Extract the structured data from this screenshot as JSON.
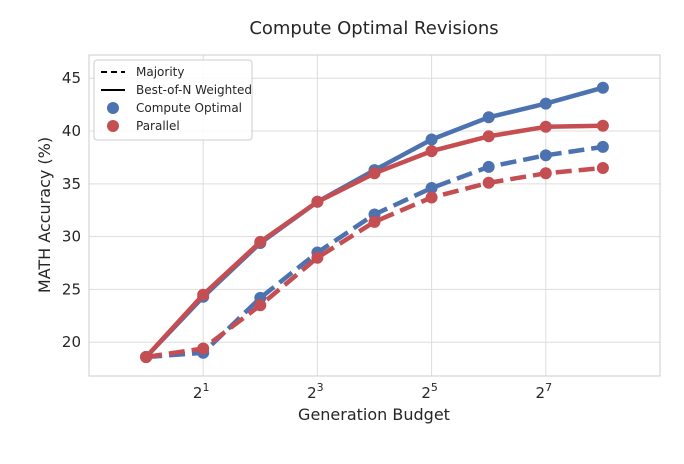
{
  "chart_data": {
    "type": "line",
    "title": "Compute Optimal Revisions",
    "xlabel": "Generation Budget",
    "ylabel": "MATH Accuracy (%)",
    "x_scale": "log2",
    "x": [
      1,
      2,
      4,
      8,
      16,
      32,
      64,
      128,
      256
    ],
    "xlim": [
      0.5,
      512
    ],
    "ylim": [
      16.8,
      47.2
    ],
    "x_ticks": [
      {
        "value": 2,
        "base": "2",
        "exp": "1"
      },
      {
        "value": 8,
        "base": "2",
        "exp": "3"
      },
      {
        "value": 32,
        "base": "2",
        "exp": "5"
      },
      {
        "value": 128,
        "base": "2",
        "exp": "7"
      }
    ],
    "y_ticks": [
      "20",
      "25",
      "30",
      "35",
      "40",
      "45"
    ],
    "grid": true,
    "legend_position": "top-left",
    "legend": {
      "style_entries": [
        {
          "label": "Majority",
          "style": "dashed"
        },
        {
          "label": "Best-of-N Weighted",
          "style": "solid"
        }
      ],
      "color_entries": [
        {
          "label": "Compute Optimal",
          "color": "#4C72B0"
        },
        {
          "label": "Parallel",
          "color": "#C44E52"
        }
      ]
    },
    "series": [
      {
        "method": "Compute Optimal",
        "aggregation": "Majority",
        "style": "dashed",
        "color": "#4C72B0",
        "values": [
          18.6,
          19.0,
          24.2,
          28.5,
          32.1,
          34.6,
          36.6,
          37.7,
          38.5
        ]
      },
      {
        "method": "Parallel",
        "aggregation": "Majority",
        "style": "dashed",
        "color": "#C44E52",
        "values": [
          18.6,
          19.4,
          23.5,
          28.0,
          31.4,
          33.7,
          35.1,
          36.0,
          36.5
        ]
      },
      {
        "method": "Compute Optimal",
        "aggregation": "Best-of-N Weighted",
        "style": "solid",
        "color": "#4C72B0",
        "values": [
          18.6,
          24.3,
          29.4,
          33.3,
          36.3,
          39.2,
          41.3,
          42.6,
          44.1
        ]
      },
      {
        "method": "Parallel",
        "aggregation": "Best-of-N Weighted",
        "style": "solid",
        "color": "#C44E52",
        "values": [
          18.6,
          24.5,
          29.5,
          33.3,
          36.0,
          38.1,
          39.5,
          40.4,
          40.5
        ]
      }
    ]
  }
}
